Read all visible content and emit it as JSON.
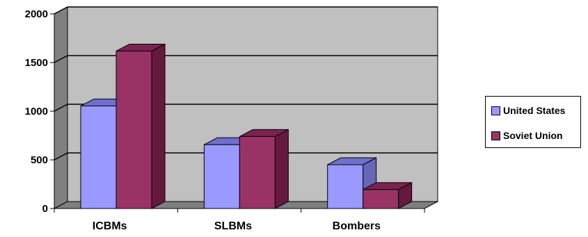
{
  "chart_data": {
    "type": "bar",
    "style": "3d-clustered-column",
    "categories": [
      "ICBMs",
      "SLBMs",
      "Bombers"
    ],
    "series": [
      {
        "name": "United States",
        "values": [
          1054,
          656,
          450
        ],
        "color": "#9999ff",
        "top_color": "#6f6fcf",
        "side_color": "#6666bb"
      },
      {
        "name": "Soviet Union",
        "values": [
          1618,
          740,
          195
        ],
        "color": "#993366",
        "top_color": "#7a2350",
        "side_color": "#66193f"
      }
    ],
    "y_ticks": [
      "0",
      "500",
      "1000",
      "1500",
      "2000"
    ],
    "ylim": [
      0,
      2000
    ],
    "grid": true,
    "legend_position": "right",
    "colors": {
      "plot_back": "#c0c0c0",
      "plot_left_wall": "#808080",
      "plot_floor": "#7f7f7f",
      "gridline": "#000000"
    },
    "title": "",
    "xlabel": "",
    "ylabel": ""
  }
}
